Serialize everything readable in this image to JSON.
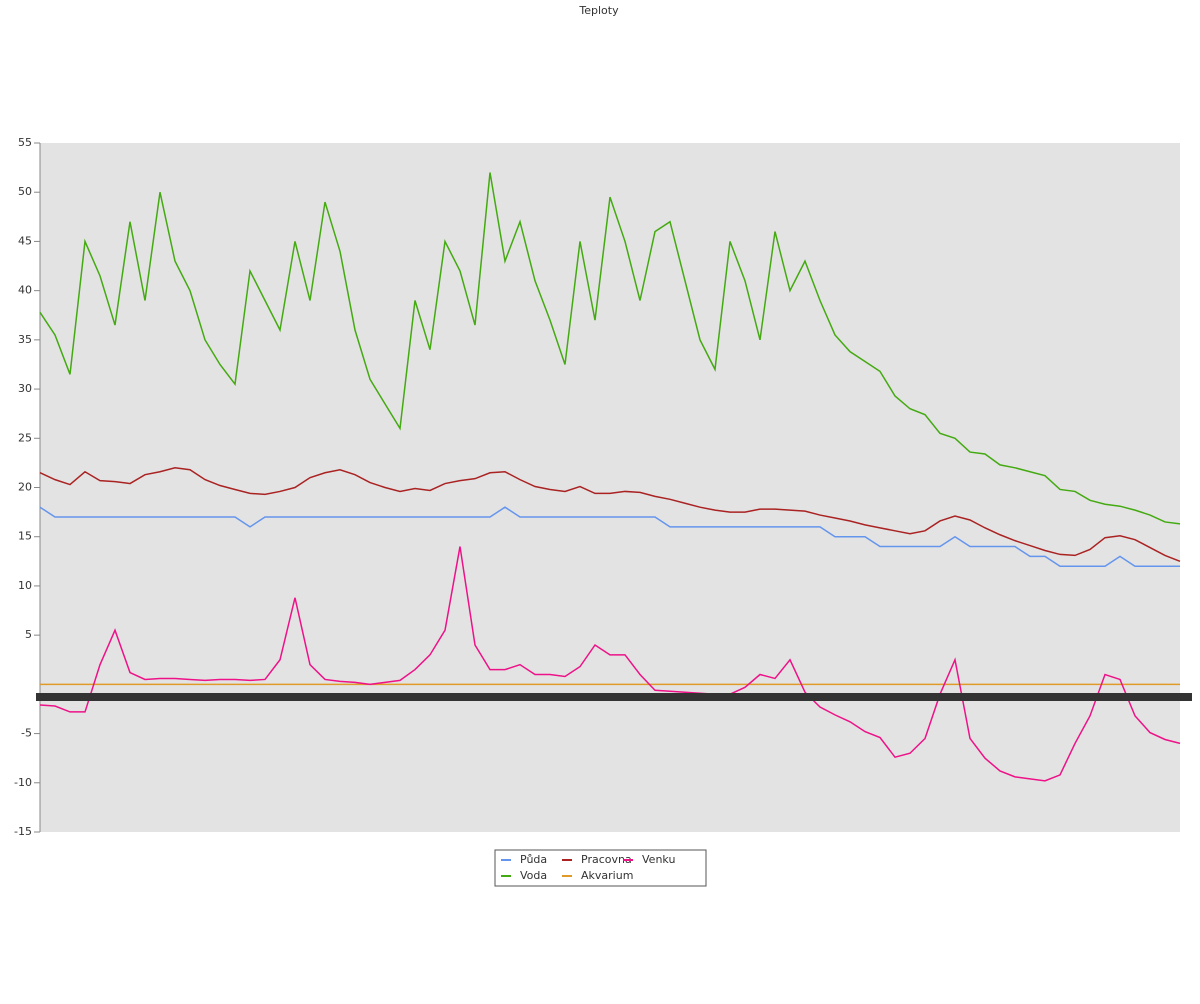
{
  "chart_data": {
    "type": "line",
    "title": "Teploty",
    "ylim": [
      -15,
      55
    ],
    "yticks": [
      -15,
      -10,
      -5,
      5,
      10,
      15,
      20,
      25,
      30,
      35,
      40,
      45,
      50,
      55
    ],
    "grid": false,
    "legend": "bottom",
    "series": [
      {
        "name": "Půda",
        "color": "#6495ed",
        "values": [
          18,
          17,
          17,
          17,
          17,
          17,
          17,
          17,
          17,
          17,
          17,
          17,
          17,
          17,
          16,
          17,
          17,
          17,
          17,
          17,
          17,
          17,
          17,
          17,
          17,
          17,
          17,
          17,
          17,
          17,
          17,
          18,
          17,
          17,
          17,
          17,
          17,
          17,
          17,
          17,
          17,
          17,
          16,
          16,
          16,
          16,
          16,
          16,
          16,
          16,
          16,
          16,
          16,
          15,
          15,
          15,
          14,
          14,
          14,
          14,
          14,
          15,
          14,
          14,
          14,
          14,
          13,
          13,
          12,
          12,
          12,
          12,
          13,
          12,
          12,
          12,
          12
        ]
      },
      {
        "name": "Voda",
        "color": "#44aa11",
        "values": [
          37.8,
          35.5,
          31.5,
          45,
          41.5,
          36.5,
          47,
          39,
          50,
          43,
          40,
          35,
          32.5,
          30.5,
          42,
          39,
          36,
          45,
          39,
          49,
          44,
          36,
          31,
          28.5,
          26,
          39,
          34,
          45,
          42,
          36.5,
          52,
          43,
          47,
          41,
          37,
          32.5,
          45,
          37,
          49.5,
          45,
          39,
          46,
          47,
          41,
          35,
          32,
          45,
          41,
          35,
          46,
          40,
          43,
          39,
          35.5,
          33.8,
          32.8,
          31.8,
          29.3,
          28,
          27.4,
          25.5,
          25,
          23.6,
          23.4,
          22.3,
          22,
          21.6,
          21.2,
          19.8,
          19.6,
          18.7,
          18.3,
          18.1,
          17.7,
          17.2,
          16.5,
          16.3
        ]
      },
      {
        "name": "Pracovna",
        "color": "#aa2222",
        "values": [
          21.5,
          20.8,
          20.3,
          21.6,
          20.7,
          20.6,
          20.4,
          21.3,
          21.6,
          22,
          21.8,
          20.8,
          20.2,
          19.8,
          19.4,
          19.3,
          19.6,
          20,
          21,
          21.5,
          21.8,
          21.3,
          20.5,
          20,
          19.6,
          19.9,
          19.7,
          20.4,
          20.7,
          20.9,
          21.5,
          21.6,
          20.8,
          20.1,
          19.8,
          19.6,
          20.1,
          19.4,
          19.4,
          19.6,
          19.5,
          19.1,
          18.8,
          18.4,
          18,
          17.7,
          17.5,
          17.5,
          17.8,
          17.8,
          17.7,
          17.6,
          17.2,
          16.9,
          16.6,
          16.2,
          15.9,
          15.6,
          15.3,
          15.6,
          16.6,
          17.1,
          16.7,
          15.9,
          15.2,
          14.6,
          14.1,
          13.6,
          13.2,
          13.1,
          13.7,
          14.9,
          15.1,
          14.7,
          13.9,
          13.1,
          12.5
        ]
      },
      {
        "name": "Akvarium",
        "color": "#e09a28",
        "values": [
          0,
          0,
          0,
          0,
          0,
          0,
          0,
          0,
          0,
          0,
          0,
          0,
          0,
          0,
          0,
          0,
          0,
          0,
          0,
          0,
          0,
          0,
          0,
          0,
          0,
          0,
          0,
          0,
          0,
          0,
          0,
          0,
          0,
          0,
          0,
          0,
          0,
          0,
          0,
          0,
          0,
          0,
          0,
          0,
          0,
          0,
          0,
          0,
          0,
          0,
          0,
          0,
          0,
          0,
          0,
          0,
          0,
          0,
          0,
          0,
          0,
          0,
          0,
          0,
          0,
          0,
          0,
          0,
          0,
          0,
          0,
          0,
          0,
          0,
          0,
          0,
          0
        ]
      },
      {
        "name": "Venku",
        "color": "#ee1188",
        "values": [
          -2.1,
          -2.2,
          -2.8,
          -2.8,
          2,
          5.5,
          1.2,
          0.5,
          0.6,
          0.6,
          0.5,
          0.4,
          0.5,
          0.5,
          0.4,
          0.5,
          2.5,
          8.8,
          2,
          0.5,
          0.3,
          0.2,
          0,
          0.2,
          0.4,
          1.5,
          3,
          5.5,
          14,
          4,
          1.5,
          1.5,
          2,
          1,
          1,
          0.8,
          1.8,
          4,
          3,
          3,
          1,
          -0.6,
          -0.7,
          -0.8,
          -0.9,
          -1,
          -1,
          -0.3,
          1,
          0.6,
          2.5,
          -0.8,
          -2.3,
          -3.1,
          -3.8,
          -4.8,
          -5.4,
          -7.4,
          -7,
          -5.5,
          -1,
          2.5,
          -5.5,
          -7.5,
          -8.8,
          -9.4,
          -9.6,
          -9.8,
          -9.2,
          -6,
          -3.2,
          1,
          0.5,
          -3.2,
          -4.9,
          -5.6,
          -6
        ]
      }
    ]
  }
}
